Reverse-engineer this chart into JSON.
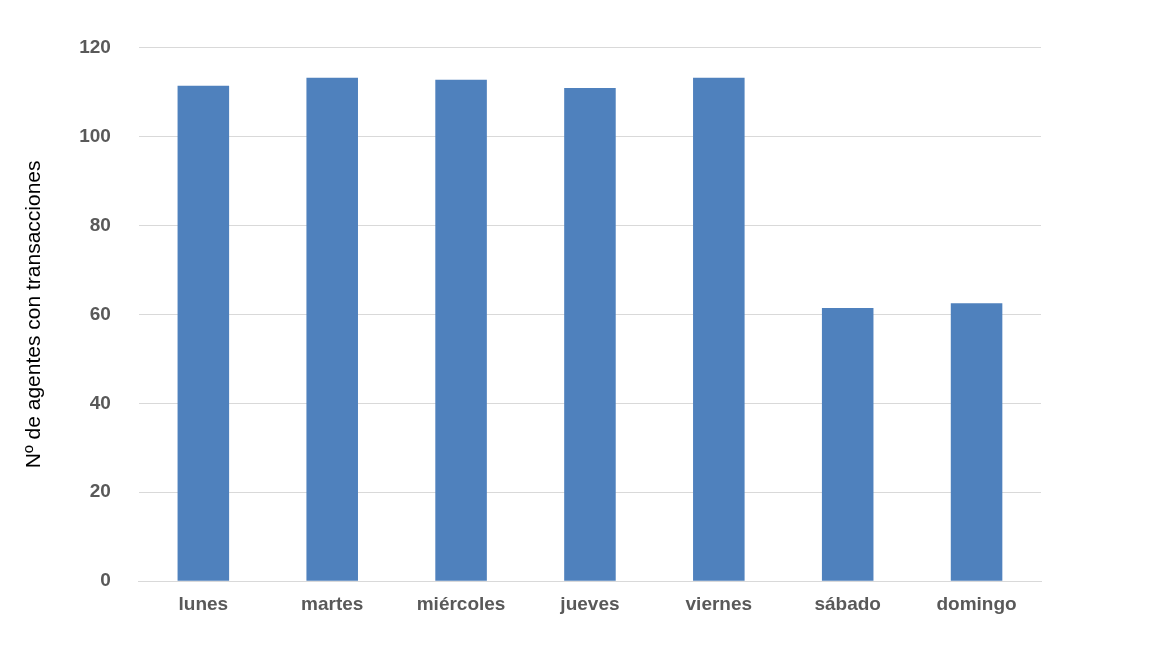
{
  "chart_data": {
    "type": "bar",
    "ylabel": "Nº de agentes con transacciones",
    "categories": [
      "lunes",
      "martes",
      "miércoles",
      "jueves",
      "viernes",
      "sábado",
      "domingo"
    ],
    "values": [
      111.4,
      113.2,
      112.7,
      110.9,
      113.2,
      61.4,
      62.5
    ],
    "color": "#4f81bd",
    "ylim": [
      0,
      120
    ],
    "yticks": [
      0,
      20,
      40,
      60,
      80,
      100,
      120
    ],
    "grid": "y",
    "legend": false
  }
}
